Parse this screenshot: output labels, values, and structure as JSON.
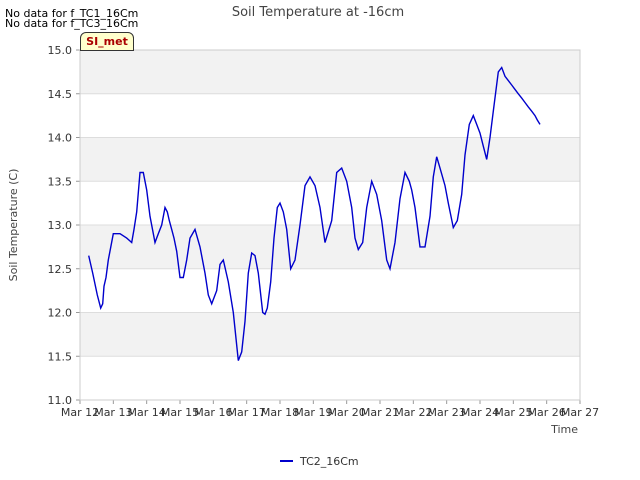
{
  "notices": [
    "No data for f_TC1_16Cm",
    "No data for f_TC3_16Cm"
  ],
  "badge": "SI_met",
  "colors": {
    "line": "#0000cc",
    "band": "#f2f2f2",
    "grid": "#dddddd"
  },
  "chart_data": {
    "type": "line",
    "title": "Soil Temperature at -16cm",
    "xlabel": "Time",
    "ylabel": "Soil Temperature (C)",
    "ylim": [
      11.0,
      15.0
    ],
    "xlim": [
      0,
      15
    ],
    "yticks": [
      11.0,
      11.5,
      12.0,
      12.5,
      13.0,
      13.5,
      14.0,
      14.5,
      15.0
    ],
    "yticklabels": [
      "11.0",
      "11.5",
      "12.0",
      "12.5",
      "13.0",
      "13.5",
      "14.0",
      "14.5",
      "15.0"
    ],
    "xticks": [
      0,
      1,
      2,
      3,
      4,
      5,
      6,
      7,
      8,
      9,
      10,
      11,
      12,
      13,
      14,
      15
    ],
    "xticklabels": [
      "Mar 12",
      "Mar 13",
      "Mar 14",
      "Mar 15",
      "Mar 16",
      "Mar 17",
      "Mar 18",
      "Mar 19",
      "Mar 20",
      "Mar 21",
      "Mar 22",
      "Mar 23",
      "Mar 24",
      "Mar 25",
      "Mar 26",
      "Mar 27"
    ],
    "legend": [
      "TC2_16Cm"
    ],
    "series": [
      {
        "name": "TC2_16Cm",
        "x": [
          0.26,
          0.38,
          0.52,
          0.62,
          0.68,
          0.72,
          0.78,
          0.85,
          1.0,
          1.2,
          1.4,
          1.55,
          1.62,
          1.7,
          1.8,
          1.9,
          2.0,
          2.1,
          2.25,
          2.35,
          2.45,
          2.55,
          2.62,
          2.68,
          2.75,
          2.82,
          2.9,
          3.0,
          3.1,
          3.2,
          3.3,
          3.45,
          3.6,
          3.75,
          3.85,
          3.95,
          4.1,
          4.2,
          4.3,
          4.45,
          4.6,
          4.75,
          4.85,
          4.95,
          5.05,
          5.15,
          5.25,
          5.35,
          5.48,
          5.55,
          5.62,
          5.72,
          5.82,
          5.92,
          6.0,
          6.1,
          6.2,
          6.32,
          6.45,
          6.6,
          6.75,
          6.9,
          7.05,
          7.2,
          7.35,
          7.55,
          7.7,
          7.85,
          8.0,
          8.15,
          8.25,
          8.35,
          8.48,
          8.6,
          8.75,
          8.9,
          9.05,
          9.2,
          9.3,
          9.45,
          9.6,
          9.75,
          9.88,
          9.95,
          10.05,
          10.2,
          10.35,
          10.5,
          10.6,
          10.7,
          10.8,
          10.95,
          11.05,
          11.2,
          11.32,
          11.45,
          11.55,
          11.68,
          11.8,
          11.9,
          12.0,
          12.1,
          12.2,
          12.3,
          12.4,
          12.55,
          12.65,
          12.75,
          12.85,
          12.95,
          13.05,
          13.15,
          13.25,
          13.35,
          13.45,
          13.55,
          13.65,
          13.72,
          13.8
        ],
        "y": [
          12.65,
          12.45,
          12.2,
          12.05,
          12.1,
          12.3,
          12.4,
          12.6,
          12.9,
          12.9,
          12.85,
          12.8,
          12.95,
          13.15,
          13.6,
          13.6,
          13.4,
          13.1,
          12.8,
          12.9,
          13.0,
          13.2,
          13.15,
          13.05,
          12.95,
          12.85,
          12.7,
          12.4,
          12.4,
          12.6,
          12.85,
          12.95,
          12.75,
          12.45,
          12.2,
          12.1,
          12.25,
          12.55,
          12.6,
          12.35,
          12.0,
          11.45,
          11.55,
          11.9,
          12.45,
          12.68,
          12.65,
          12.45,
          12.0,
          11.98,
          12.05,
          12.35,
          12.85,
          13.2,
          13.25,
          13.15,
          12.95,
          12.5,
          12.6,
          13.0,
          13.45,
          13.55,
          13.45,
          13.2,
          12.8,
          13.05,
          13.6,
          13.65,
          13.5,
          13.2,
          12.85,
          12.72,
          12.8,
          13.2,
          13.5,
          13.35,
          13.05,
          12.6,
          12.5,
          12.8,
          13.3,
          13.6,
          13.5,
          13.4,
          13.2,
          12.75,
          12.75,
          13.1,
          13.55,
          13.78,
          13.65,
          13.45,
          13.25,
          12.97,
          13.05,
          13.35,
          13.8,
          14.15,
          14.25,
          14.15,
          14.05,
          13.9,
          13.75,
          14.0,
          14.3,
          14.75,
          14.8,
          14.7,
          14.65,
          14.6,
          14.55,
          14.5,
          14.45,
          14.4,
          14.35,
          14.3,
          14.25,
          14.2,
          14.15
        ]
      }
    ]
  }
}
